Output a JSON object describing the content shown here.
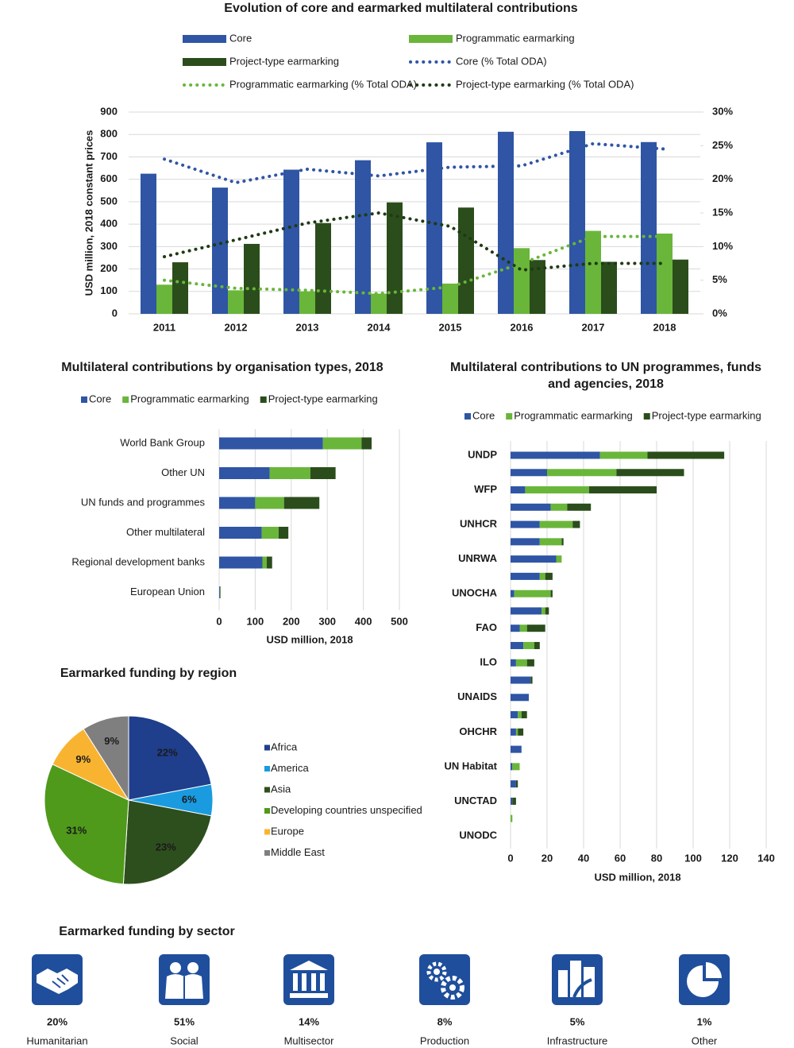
{
  "chart_data": [
    {
      "type": "combo",
      "title": "Evolution of core and earmarked multilateral contributions",
      "ylabel": "USD million, 2018 constant prices",
      "categories": [
        "2011",
        "2012",
        "2013",
        "2014",
        "2015",
        "2016",
        "2017",
        "2018"
      ],
      "series": [
        {
          "name": "Core",
          "type": "bar",
          "color": "#2f55a4",
          "values": [
            625,
            563,
            643,
            685,
            765,
            812,
            815,
            766
          ]
        },
        {
          "name": "Programmatic earmarking",
          "type": "bar",
          "color": "#6ab63a",
          "values": [
            130,
            105,
            100,
            90,
            135,
            293,
            370,
            358
          ]
        },
        {
          "name": "Project-type earmarking",
          "type": "bar",
          "color": "#2b4d1c",
          "values": [
            230,
            312,
            405,
            497,
            474,
            240,
            232,
            242
          ]
        },
        {
          "name": "Core (% Total ODA)",
          "type": "line",
          "axis": "y2",
          "color": "#2f55a4",
          "values": [
            23,
            19.5,
            21.5,
            20.5,
            21.8,
            22,
            25.3,
            24.5
          ]
        },
        {
          "name": "Programmatic earmarking (% Total ODA)",
          "type": "line",
          "axis": "y2",
          "color": "#6ab63a",
          "values": [
            5,
            3.8,
            3.5,
            3,
            4,
            7.5,
            11.5,
            11.5
          ]
        },
        {
          "name": "Project-type earmarking (% Total ODA)",
          "type": "line",
          "axis": "y2",
          "color": "#1f3a14",
          "values": [
            8.5,
            11,
            13.5,
            15,
            13,
            6.5,
            7.5,
            7.5
          ]
        }
      ],
      "ylim": [
        0,
        900
      ],
      "yticks": [
        0,
        100,
        200,
        300,
        400,
        500,
        600,
        700,
        800,
        900
      ],
      "y2lim": [
        0,
        30
      ],
      "y2ticks": [
        {
          "value": 0,
          "label": "0%"
        },
        {
          "value": 5,
          "label": "5%"
        },
        {
          "value": 10,
          "label": "10%"
        },
        {
          "value": 15,
          "label": "15%"
        },
        {
          "value": 20,
          "label": "20%"
        },
        {
          "value": 25,
          "label": "25%"
        },
        {
          "value": 30,
          "label": "30%"
        }
      ],
      "grid": true
    },
    {
      "type": "stacked-barh",
      "title": "Multilateral contributions by organisation types, 2018",
      "xlabel": "USD million, 2018",
      "categories": [
        "World Bank Group",
        "Other UN",
        "UN funds and programmes",
        "Other multilateral",
        "Regional development banks",
        "European Union"
      ],
      "series": [
        {
          "name": "Core",
          "color": "#2f55a4",
          "values": [
            288,
            140,
            100,
            118,
            120,
            2
          ]
        },
        {
          "name": "Programmatic earmarking",
          "color": "#6ab63a",
          "values": [
            107,
            113,
            80,
            47,
            12,
            1
          ]
        },
        {
          "name": "Project-type earmarking",
          "color": "#2b4d1c",
          "values": [
            28,
            70,
            98,
            27,
            15,
            1
          ]
        }
      ],
      "xlim": [
        0,
        500
      ],
      "xticks": [
        0,
        100,
        200,
        300,
        400,
        500
      ],
      "grid": true
    },
    {
      "type": "stacked-barh",
      "title": "Multilateral contributions to UN programmes, funds and agencies, 2018",
      "xlabel": "USD million, 2018",
      "categories": [
        "UNDP",
        null,
        "WFP",
        null,
        "UNHCR",
        null,
        "UNRWA",
        null,
        "UNOCHA",
        null,
        "FAO",
        null,
        "ILO",
        null,
        "UNAIDS",
        null,
        "OHCHR",
        null,
        "UN Habitat",
        null,
        "UNCTAD",
        null,
        "UNODC"
      ],
      "series": [
        {
          "name": "Core",
          "color": "#2f55a4",
          "values": [
            49,
            20,
            8,
            22,
            16,
            16,
            25,
            16,
            2,
            17,
            5,
            7,
            3,
            11,
            10,
            4,
            3,
            6,
            1,
            3,
            1,
            0,
            0
          ]
        },
        {
          "name": "Programmatic earmarking",
          "color": "#6ab63a",
          "values": [
            26,
            38,
            35,
            9,
            18,
            12,
            3,
            3,
            20,
            2,
            4,
            6,
            6,
            0,
            0,
            2,
            1,
            0,
            4,
            0,
            0,
            1,
            0
          ]
        },
        {
          "name": "Project-type earmarking",
          "color": "#2b4d1c",
          "values": [
            42,
            37,
            37,
            13,
            4,
            1,
            0,
            4,
            1,
            2,
            10,
            3,
            4,
            1,
            0,
            3,
            3,
            0,
            0,
            1,
            2,
            0,
            0
          ]
        }
      ],
      "xlim": [
        0,
        140
      ],
      "xticks": [
        0,
        20,
        40,
        60,
        80,
        100,
        120,
        140
      ],
      "grid": true
    },
    {
      "type": "pie",
      "title": "Earmarked funding by region",
      "categories": [
        "Africa",
        "America",
        "Asia",
        "Developing countries unspecified",
        "Europe",
        "Middle East"
      ],
      "values": [
        22,
        6,
        23,
        31,
        9,
        9
      ],
      "value_labels": [
        "22%",
        "6%",
        "23%",
        "31%",
        "9%",
        "9%"
      ],
      "colors": [
        "#1f3e8c",
        "#1a9be0",
        "#2d4f1e",
        "#4f9a1a",
        "#f8b431",
        "#7f7f7f"
      ]
    },
    {
      "type": "pictogram",
      "title": "Earmarked funding by sector",
      "categories": [
        "Humanitarian",
        "Social",
        "Multisector",
        "Production",
        "Infrastructure",
        "Other"
      ],
      "values": [
        20,
        51,
        14,
        8,
        5,
        1
      ],
      "value_labels": [
        "20%",
        "51%",
        "14%",
        "8%",
        "5%",
        "1%"
      ],
      "color": "#1f4e9c"
    }
  ]
}
